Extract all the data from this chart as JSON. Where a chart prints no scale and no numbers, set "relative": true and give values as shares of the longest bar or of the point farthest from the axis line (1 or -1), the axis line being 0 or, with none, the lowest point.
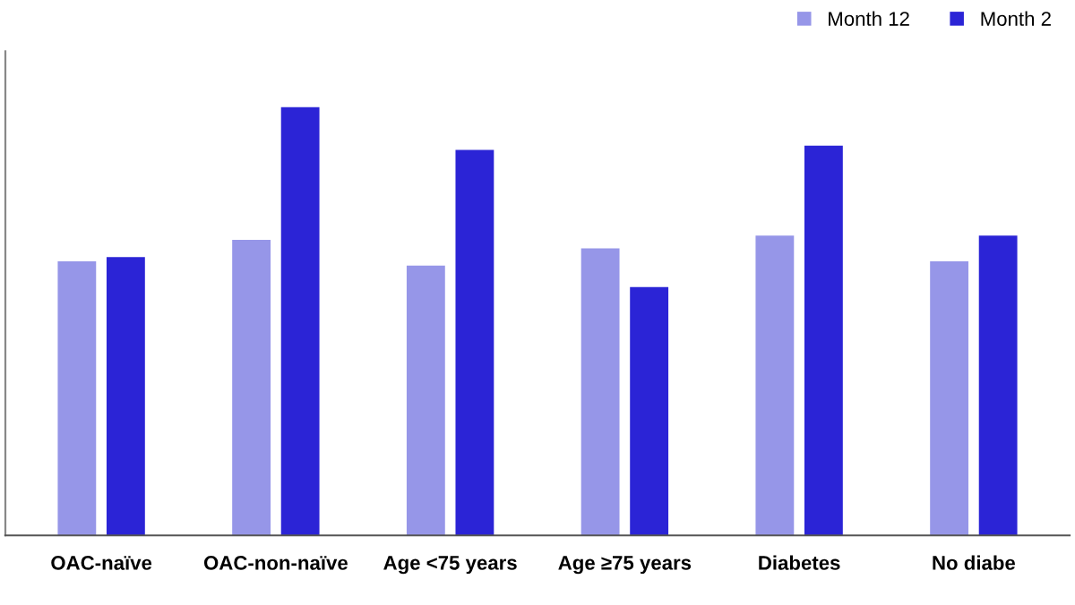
{
  "chart_data": {
    "type": "bar",
    "relative": true,
    "categories": [
      "OAC-naïve",
      "OAC-non-naïve",
      "Age <75 years",
      "Age ≥75 years",
      "Diabetes",
      "No diabe"
    ],
    "series": [
      {
        "name": "Month 12",
        "color": "#9696e8",
        "values": [
          0.64,
          0.69,
          0.63,
          0.67,
          0.7,
          0.64
        ]
      },
      {
        "name": "Month 2",
        "color": "#2b24d6",
        "values": [
          0.65,
          1,
          0.9,
          0.58,
          0.91,
          0.7
        ]
      }
    ],
    "legend": "top right",
    "grid": false
  }
}
